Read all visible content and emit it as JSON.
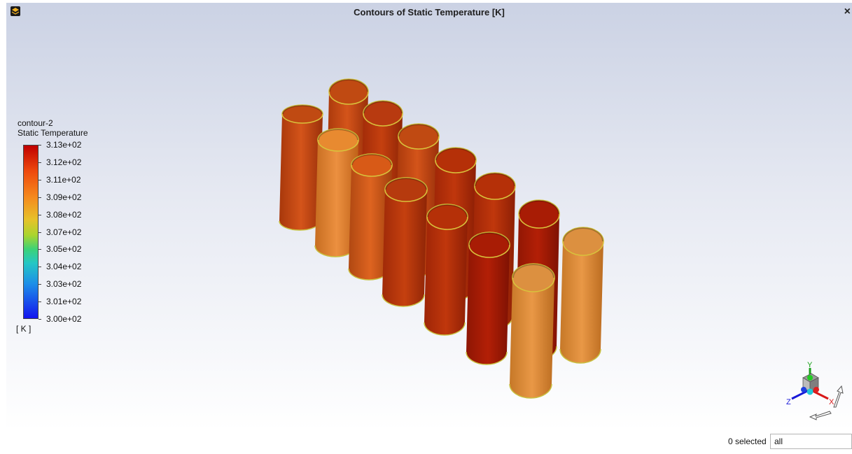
{
  "window": {
    "title": "Contours of Static Temperature [K]",
    "close_glyph": "×"
  },
  "legend": {
    "name": "contour-2",
    "variable": "Static Temperature",
    "unit": "[ K ]",
    "tick_labels": [
      "3.13e+02",
      "3.12e+02",
      "3.11e+02",
      "3.09e+02",
      "3.08e+02",
      "3.07e+02",
      "3.05e+02",
      "3.04e+02",
      "3.03e+02",
      "3.01e+02",
      "3.00e+02"
    ]
  },
  "triad": {
    "x": "X",
    "y": "Y",
    "z": "Z"
  },
  "status": {
    "selected": "0 selected",
    "filter_value": "all"
  },
  "icons": [
    "app-icon",
    "close-icon",
    "axis-triad-icon",
    "rotate-arrow-icon"
  ],
  "cylinder_colors": [
    "#c44d12",
    "#b83a10",
    "#ea8a30",
    "#d85a17",
    "#b8320b",
    "#aa2008",
    "#c1520f",
    "#dd9140"
  ]
}
